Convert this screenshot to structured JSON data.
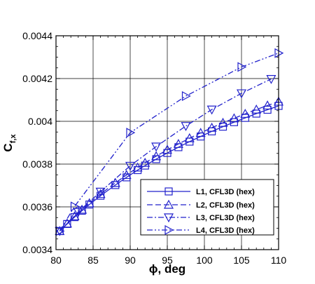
{
  "chart_data": {
    "type": "line",
    "xlabel": {
      "main": "ϕ, deg"
    },
    "ylabel": {
      "main": "C",
      "sub": "f,x"
    },
    "xlim": [
      80,
      110
    ],
    "ylim": [
      0.0034,
      0.0044
    ],
    "x_ticks": [
      "80",
      "85",
      "90",
      "95",
      "100",
      "105",
      "110"
    ],
    "y_ticks": [
      "0.0034",
      "0.0036",
      "0.0038",
      "0.004",
      "0.0042",
      "0.0044"
    ],
    "grid": true,
    "legend_position": "bottom-right",
    "series_color": "#2222cc",
    "series": [
      {
        "name": "L1, CFL3D (hex)",
        "line_style": "solid",
        "marker": "square",
        "x": [
          80.5,
          81.5,
          82.5,
          83.5,
          84.5,
          86,
          88,
          89.5,
          91,
          92,
          93.5,
          95,
          96.5,
          98,
          99.5,
          101,
          102.5,
          104,
          105.5,
          107,
          108.5,
          110
        ],
        "y": [
          0.003487,
          0.00352,
          0.003552,
          0.003582,
          0.003611,
          0.003652,
          0.003702,
          0.003738,
          0.003772,
          0.003793,
          0.003823,
          0.003852,
          0.003879,
          0.003905,
          0.003929,
          0.003953,
          0.003975,
          0.003996,
          0.004016,
          0.004036,
          0.004054,
          0.004072
        ]
      },
      {
        "name": "L2, CFL3D (hex)",
        "line_style": "dashed",
        "marker": "triangle-up",
        "x": [
          80.5,
          81.5,
          82.5,
          83.5,
          84.5,
          86,
          88,
          89.5,
          91,
          92,
          93.5,
          95,
          96.5,
          98,
          99.5,
          101,
          102.5,
          104,
          105.5,
          107,
          108.5,
          110
        ],
        "y": [
          0.003487,
          0.003522,
          0.003556,
          0.003587,
          0.003617,
          0.00366,
          0.003712,
          0.003749,
          0.003784,
          0.003806,
          0.003837,
          0.003867,
          0.003894,
          0.003921,
          0.003946,
          0.00397,
          0.003993,
          0.004014,
          0.004035,
          0.004055,
          0.004074,
          0.004092
        ]
      },
      {
        "name": "L3, CFL3D (hex)",
        "line_style": "dash-dot",
        "marker": "triangle-down",
        "x": [
          80.5,
          83,
          86,
          90,
          93.5,
          97.5,
          101,
          105,
          109
        ],
        "y": [
          0.003487,
          0.003576,
          0.003671,
          0.003792,
          0.003882,
          0.003978,
          0.004055,
          0.004131,
          0.004198
        ]
      },
      {
        "name": "L4, CFL3D (hex)",
        "line_style": "dash-dot-dot",
        "marker": "triangle-right",
        "x": [
          80.5,
          82.5,
          90,
          97.5,
          105,
          110
        ],
        "y": [
          0.003487,
          0.003602,
          0.003947,
          0.004118,
          0.004254,
          0.004319
        ]
      }
    ]
  }
}
